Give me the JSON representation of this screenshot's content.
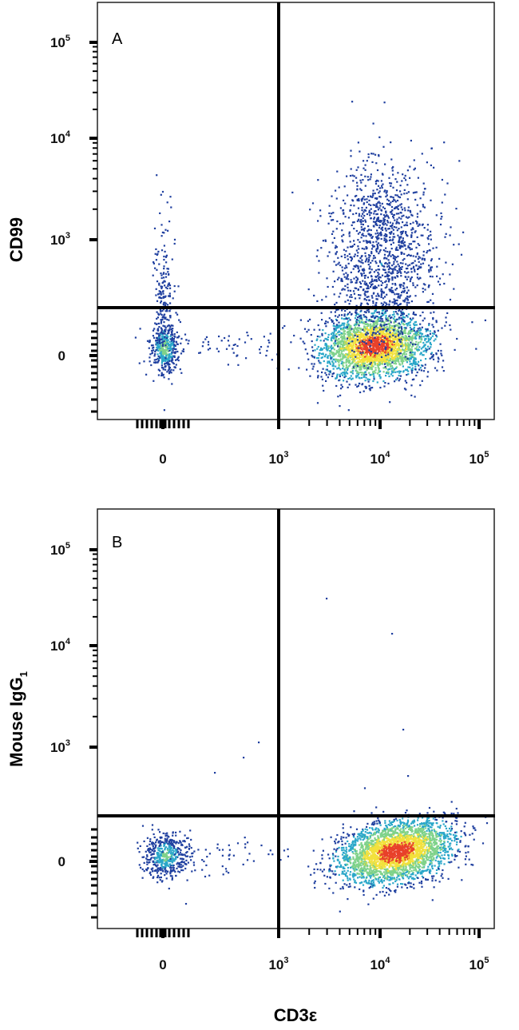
{
  "chart_data": [
    {
      "type": "scatter",
      "subtype": "flow-cytometry-density",
      "panel_label": "A",
      "xlabel": "",
      "ylabel": "CD99",
      "x_axis_scale": "biexponential",
      "y_axis_scale": "biexponential",
      "x_ticks": [
        {
          "value": "0",
          "base": "",
          "exp": ""
        },
        {
          "value": "1000",
          "base": "10",
          "exp": "3"
        },
        {
          "value": "10000",
          "base": "10",
          "exp": "4"
        },
        {
          "value": "100000",
          "base": "10",
          "exp": "5"
        }
      ],
      "y_ticks": [
        {
          "value": "0",
          "base": "",
          "exp": ""
        },
        {
          "value": "1000",
          "base": "10",
          "exp": "3"
        },
        {
          "value": "10000",
          "base": "10",
          "exp": "4"
        },
        {
          "value": "100000",
          "base": "10",
          "exp": "5"
        }
      ],
      "quadrant_gate": {
        "x": 1000,
        "y": 300
      },
      "populations": [
        {
          "name": "",
          "x_center": 0,
          "y_center": 0,
          "note": "small CD3e-negative population"
        },
        {
          "name": "",
          "x_center": 9000,
          "y_center": 0,
          "note": "main CD3e-positive population, dense core"
        },
        {
          "name": "",
          "x_center": 10000,
          "y_center": 800,
          "note": "CD3e+ CD99 high spread"
        }
      ],
      "grid": false,
      "colors": [
        "#1f3f9f",
        "#2aa7c9",
        "#7fd28a",
        "#f2e13c",
        "#e8412a"
      ]
    },
    {
      "type": "scatter",
      "subtype": "flow-cytometry-density",
      "panel_label": "B",
      "xlabel": "CD3ε",
      "ylabel_main": "Mouse IgG",
      "ylabel_sub": "1",
      "x_axis_scale": "biexponential",
      "y_axis_scale": "biexponential",
      "x_ticks": [
        {
          "value": "0",
          "base": "",
          "exp": ""
        },
        {
          "value": "1000",
          "base": "10",
          "exp": "3"
        },
        {
          "value": "10000",
          "base": "10",
          "exp": "4"
        },
        {
          "value": "100000",
          "base": "10",
          "exp": "5"
        }
      ],
      "y_ticks": [
        {
          "value": "0",
          "base": "",
          "exp": ""
        },
        {
          "value": "1000",
          "base": "10",
          "exp": "3"
        },
        {
          "value": "10000",
          "base": "10",
          "exp": "4"
        },
        {
          "value": "100000",
          "base": "10",
          "exp": "5"
        }
      ],
      "quadrant_gate": {
        "x": 1000,
        "y": 300
      },
      "populations": [
        {
          "name": "",
          "x_center": 0,
          "y_center": 0,
          "note": "small CD3e-negative population"
        },
        {
          "name": "",
          "x_center": 14000,
          "y_center": 0,
          "note": "main CD3e-positive population, dense core"
        }
      ],
      "grid": false,
      "colors": [
        "#1f3f9f",
        "#2aa7c9",
        "#7fd28a",
        "#f2e13c",
        "#e8412a"
      ]
    }
  ]
}
